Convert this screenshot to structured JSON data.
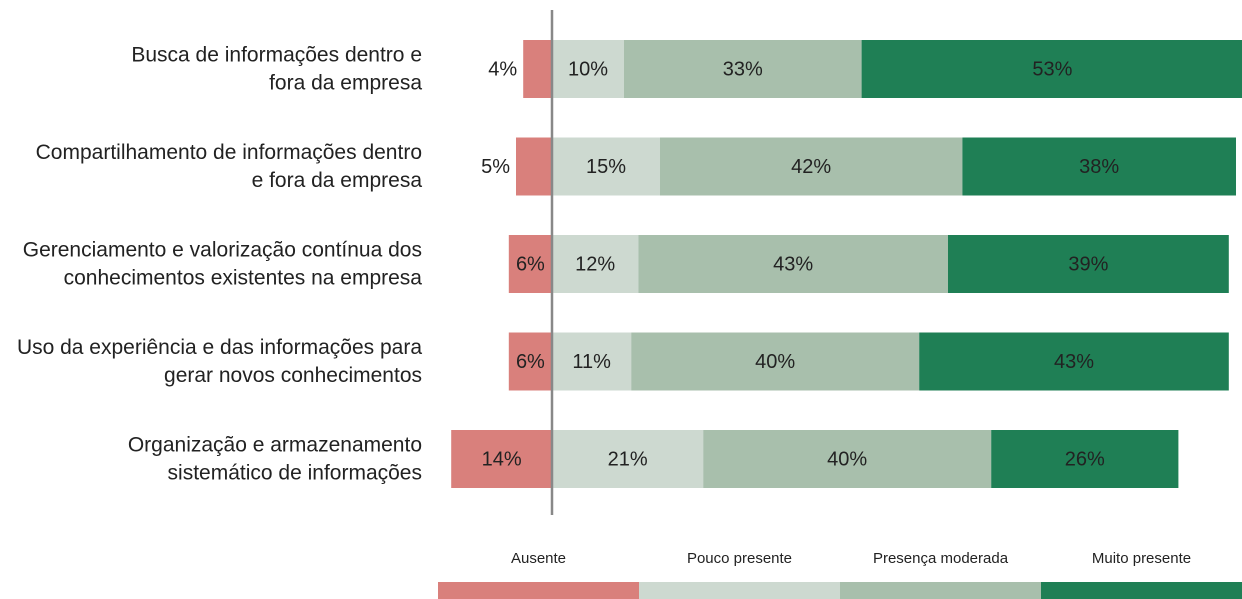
{
  "chart_data": {
    "type": "diverging-bar",
    "categories": [
      [
        "Busca de informações dentro e",
        "fora da empresa"
      ],
      [
        "Compartilhamento de informações dentro",
        "e fora da empresa"
      ],
      [
        "Gerenciamento e valorização contínua dos",
        "conhecimentos existentes na empresa"
      ],
      [
        "Uso da experiência e das informações para",
        "gerar novos conhecimentos"
      ],
      [
        "Organização e armazenamento",
        "sistemático de informações"
      ]
    ],
    "series": [
      {
        "name": "Ausente",
        "color": "#d9807c",
        "direction": "negative",
        "values": [
          4,
          5,
          6,
          6,
          14
        ],
        "value_labels": [
          "4%",
          "5%",
          "6%",
          "6%",
          "14%"
        ]
      },
      {
        "name": "Pouco presente",
        "color": "#cdd9d0",
        "values": [
          10,
          15,
          12,
          11,
          21
        ],
        "value_labels": [
          "10%",
          "15%",
          "12%",
          "11%",
          "21%"
        ]
      },
      {
        "name": "Presença moderada",
        "color": "#a8bfac",
        "values": [
          33,
          42,
          43,
          40,
          40
        ],
        "value_labels": [
          "33%",
          "42%",
          "43%",
          "40%",
          "40%"
        ]
      },
      {
        "name": "Muito presente",
        "color": "#1f7f55",
        "values": [
          53,
          38,
          39,
          43,
          26
        ],
        "value_labels": [
          "53%",
          "38%",
          "39%",
          "43%",
          "26%"
        ]
      }
    ],
    "legend": "bottom"
  }
}
